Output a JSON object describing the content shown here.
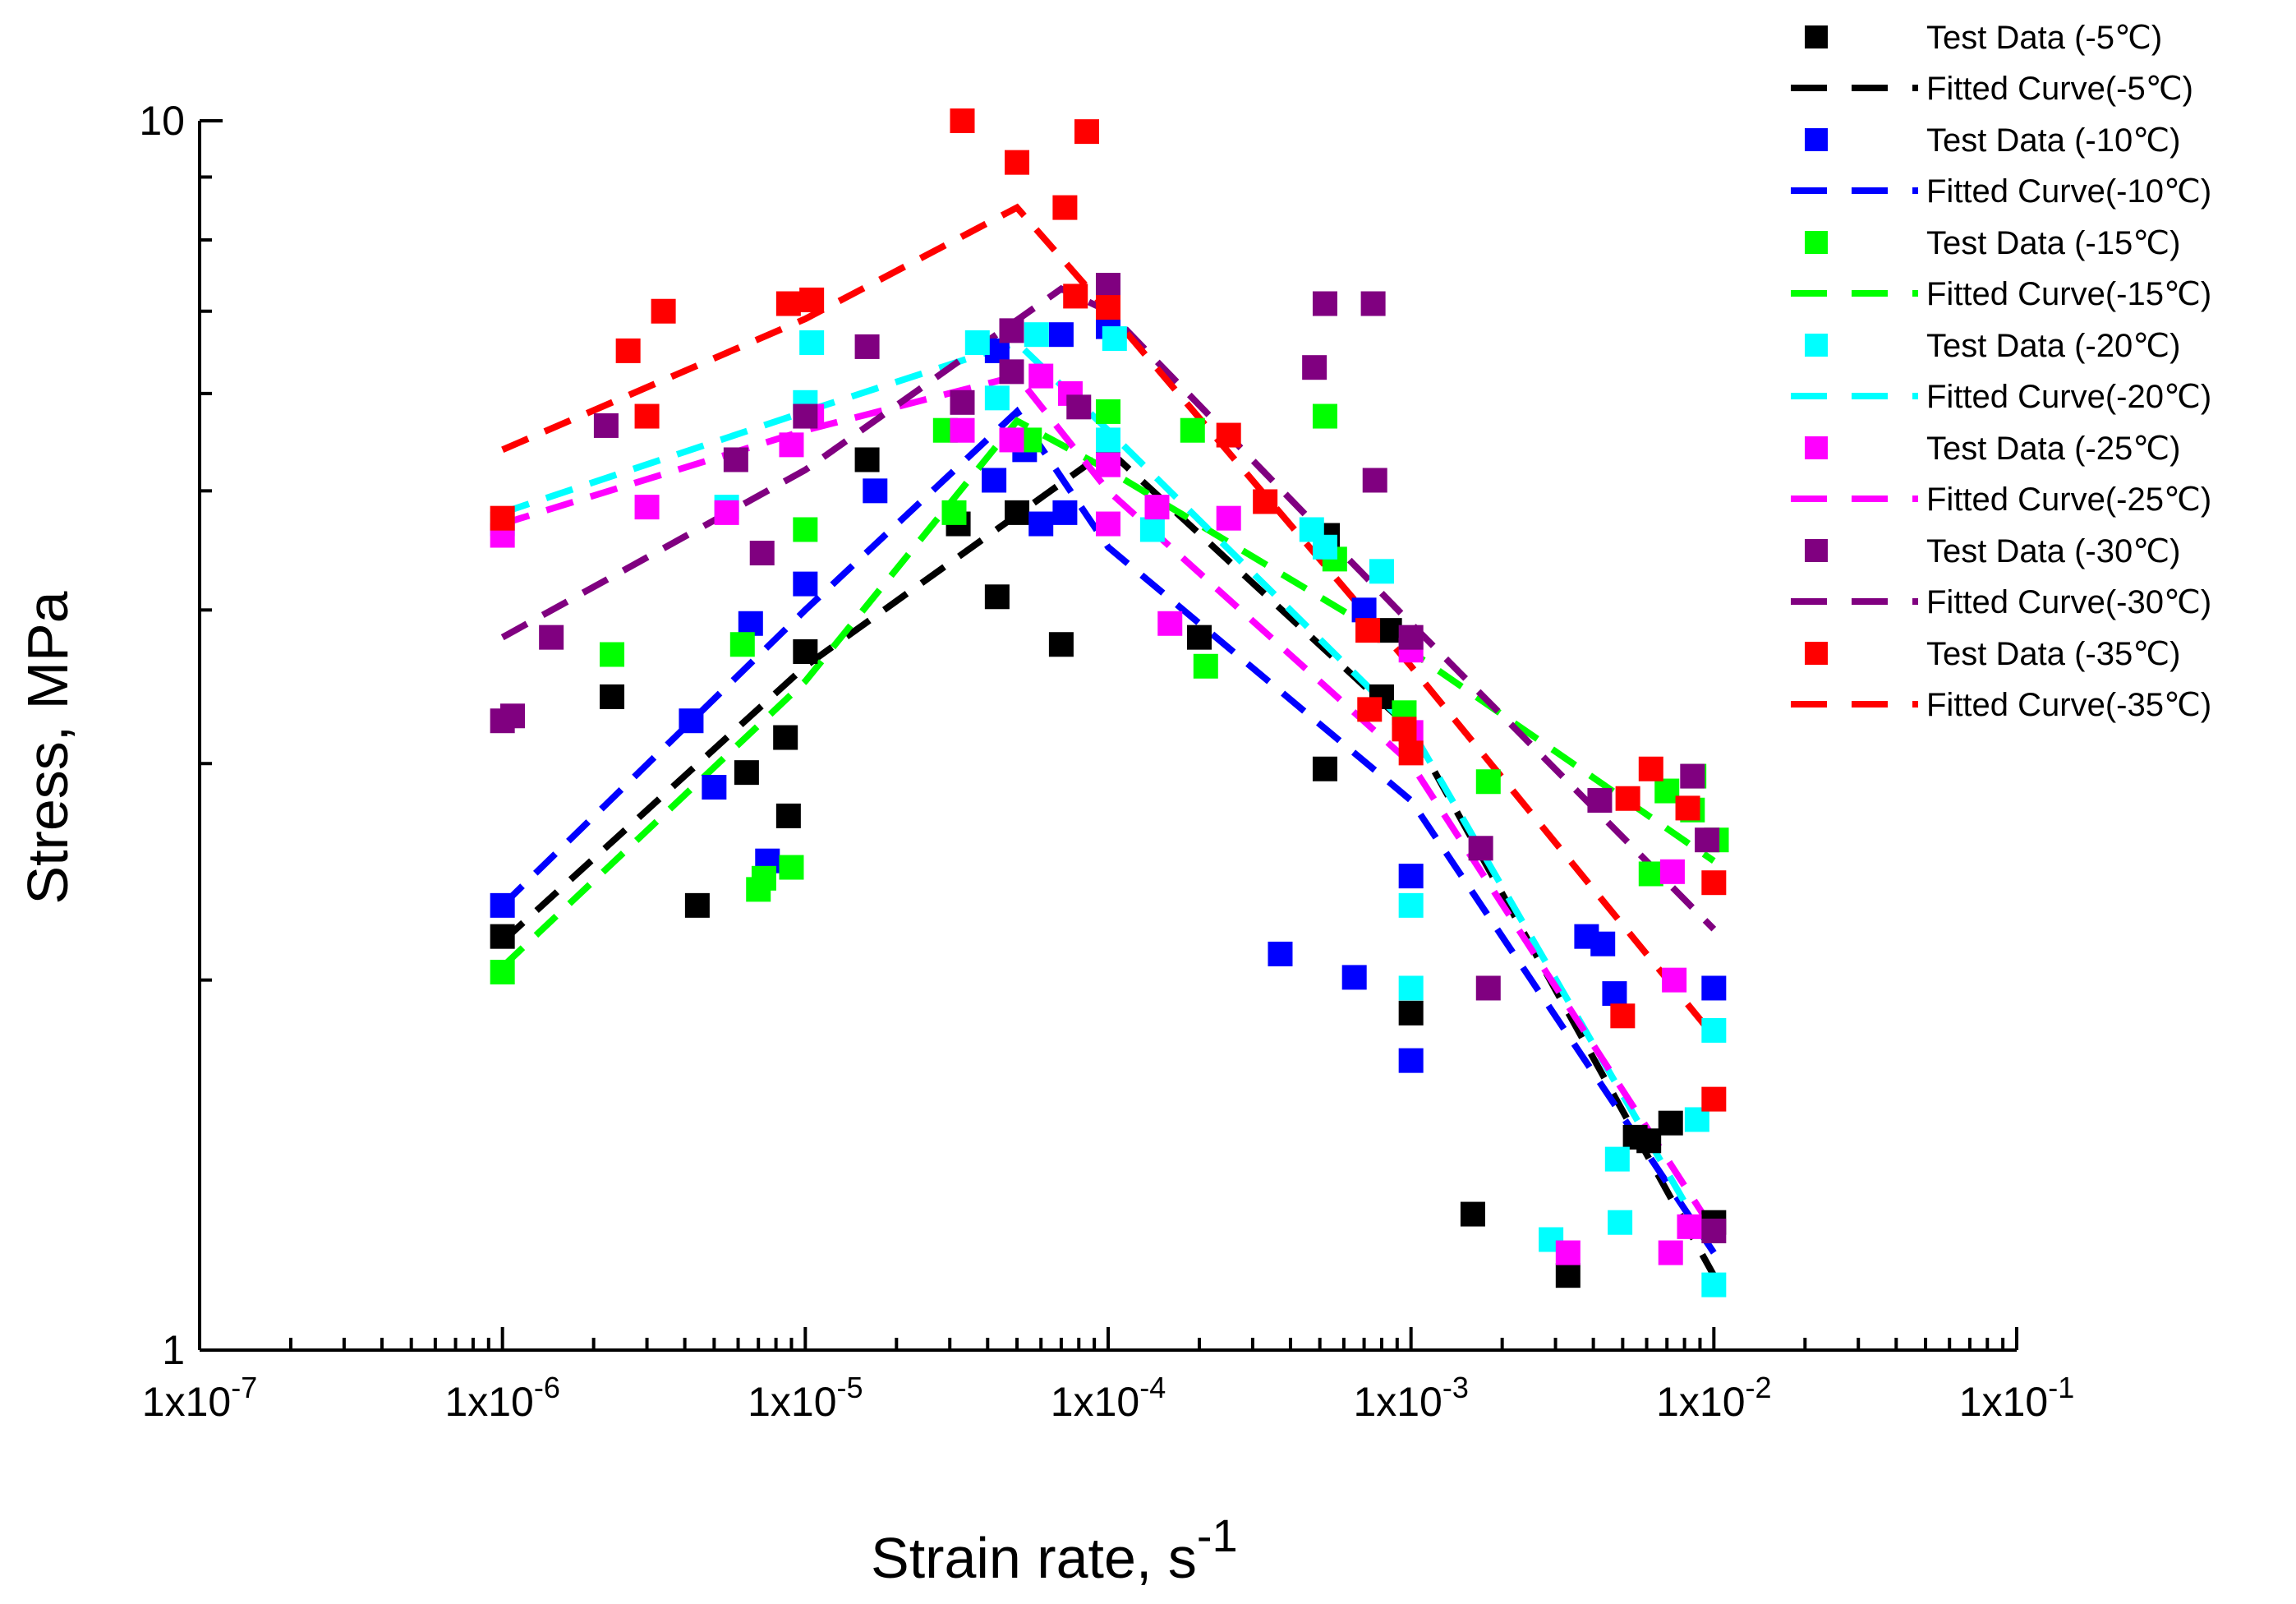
{
  "chart_data": {
    "type": "scatter",
    "title": "",
    "xlabel": "Strain rate, s",
    "xlabel_sup": "-1",
    "ylabel": "Stress, MPa",
    "xscale": "log",
    "yscale": "log",
    "xlim": [
      1e-07,
      0.1
    ],
    "ylim": [
      1,
      10
    ],
    "x_ticks": [
      {
        "value": 1e-07,
        "label": "1x10-7",
        "base": "1x10",
        "exp": "-7"
      },
      {
        "value": 1e-06,
        "label": "1x10-6",
        "base": "1x10",
        "exp": "-6"
      },
      {
        "value": 1e-05,
        "label": "1x10-5",
        "base": "1x10",
        "exp": "-5"
      },
      {
        "value": 0.0001,
        "label": "1x10-4",
        "base": "1x10",
        "exp": "-4"
      },
      {
        "value": 0.001,
        "label": "1x10-3",
        "base": "1x10",
        "exp": "-3"
      },
      {
        "value": 0.01,
        "label": "1x10-2",
        "base": "1x10",
        "exp": "-2"
      },
      {
        "value": 0.1,
        "label": "1x10-1",
        "base": "1x10",
        "exp": "-1"
      }
    ],
    "y_ticks": [
      {
        "value": 1,
        "label": "1"
      },
      {
        "value": 10,
        "label": "10"
      }
    ],
    "legend_position": "top-right, outside plot",
    "series": [
      {
        "temperature": "-5℃",
        "color": "#000000",
        "data_label": "Test Data (-5℃)",
        "fit_label": "Fitted Curve(-5℃)",
        "points": [
          [
            1e-06,
            2.17
          ],
          [
            2.3e-06,
            3.4
          ],
          [
            4.4e-06,
            2.3
          ],
          [
            6.4e-06,
            2.95
          ],
          [
            8.6e-06,
            3.15
          ],
          [
            8.8e-06,
            2.72
          ],
          [
            1e-05,
            3.7
          ],
          [
            1.6e-05,
            5.3
          ],
          [
            3.2e-05,
            4.7
          ],
          [
            4.3e-05,
            4.1
          ],
          [
            5e-05,
            4.8
          ],
          [
            7e-05,
            3.75
          ],
          [
            0.0001,
            5.3
          ],
          [
            0.0002,
            3.8
          ],
          [
            0.00052,
            2.97
          ],
          [
            0.00053,
            4.6
          ],
          [
            0.0008,
            3.4
          ],
          [
            0.00085,
            3.85
          ],
          [
            0.001,
            1.88
          ],
          [
            0.0016,
            1.29
          ],
          [
            0.0033,
            1.15
          ],
          [
            0.0055,
            1.49
          ],
          [
            0.0061,
            1.48
          ],
          [
            0.0072,
            1.53
          ],
          [
            0.01,
            1.27
          ]
        ],
        "fit": [
          [
            1e-06,
            2.15
          ],
          [
            1e-05,
            3.6
          ],
          [
            0.0001,
            5.4
          ],
          [
            0.001,
            3.2
          ],
          [
            0.01,
            1.15
          ]
        ]
      },
      {
        "temperature": "-10℃",
        "color": "#0000ff",
        "data_label": "Test Data (-10℃)",
        "fit_label": "Fitted Curve(-10℃)",
        "points": [
          [
            1e-06,
            2.3
          ],
          [
            4.2e-06,
            3.25
          ],
          [
            5e-06,
            2.87
          ],
          [
            6.6e-06,
            3.9
          ],
          [
            7.5e-06,
            2.5
          ],
          [
            1e-05,
            4.2
          ],
          [
            1.7e-05,
            5
          ],
          [
            4.2e-05,
            5.1
          ],
          [
            4.3e-05,
            6.5
          ],
          [
            5.3e-05,
            5.4
          ],
          [
            6e-05,
            4.7
          ],
          [
            7e-05,
            6.7
          ],
          [
            7.2e-05,
            4.8
          ],
          [
            0.0001,
            6.8
          ],
          [
            0.00037,
            2.1
          ],
          [
            0.00065,
            2.01
          ],
          [
            0.0007,
            4
          ],
          [
            0.001,
            2.43
          ],
          [
            0.001,
            1.72
          ],
          [
            0.0038,
            2.17
          ],
          [
            0.0043,
            2.14
          ],
          [
            0.0047,
            1.95
          ],
          [
            0.01,
            1.97
          ]
        ],
        "fit": [
          [
            1e-06,
            2.3
          ],
          [
            1e-05,
            4.0
          ],
          [
            5e-05,
            5.8
          ],
          [
            0.0001,
            4.5
          ],
          [
            0.001,
            2.8
          ],
          [
            0.01,
            1.2
          ]
        ]
      },
      {
        "temperature": "-15℃",
        "color": "#00ff00",
        "data_label": "Test Data (-15℃)",
        "fit_label": "Fitted Curve(-15℃)",
        "points": [
          [
            1e-06,
            2.03
          ],
          [
            2.3e-06,
            3.68
          ],
          [
            6.2e-06,
            3.75
          ],
          [
            7e-06,
            2.37
          ],
          [
            7.3e-06,
            2.42
          ],
          [
            9e-06,
            2.47
          ],
          [
            1e-05,
            4.65
          ],
          [
            2.9e-05,
            5.6
          ],
          [
            3.1e-05,
            4.8
          ],
          [
            5.5e-05,
            5.5
          ],
          [
            0.0001,
            5.8
          ],
          [
            0.00019,
            5.6
          ],
          [
            0.00021,
            3.6
          ],
          [
            0.00052,
            5.75
          ],
          [
            0.00056,
            4.4
          ],
          [
            0.00095,
            3.3
          ],
          [
            0.0018,
            2.9
          ],
          [
            0.0062,
            2.44
          ],
          [
            0.007,
            2.85
          ],
          [
            0.0085,
            2.75
          ],
          [
            0.0086,
            2.93
          ],
          [
            0.0102,
            2.6
          ]
        ],
        "fit": [
          [
            1e-06,
            2.05
          ],
          [
            1e-05,
            3.5
          ],
          [
            5e-05,
            5.7
          ],
          [
            0.0001,
            5.2
          ],
          [
            0.001,
            3.7
          ],
          [
            0.01,
            2.5
          ]
        ]
      },
      {
        "temperature": "-20℃",
        "color": "#00ffff",
        "data_label": "Test Data (-20℃)",
        "fit_label": "Fitted Curve(-20℃)",
        "points": [
          [
            1e-06,
            4.7
          ],
          [
            5.5e-06,
            4.85
          ],
          [
            1e-05,
            5.9
          ],
          [
            1.05e-05,
            6.6
          ],
          [
            3.7e-05,
            6.6
          ],
          [
            4.3e-05,
            5.95
          ],
          [
            5.8e-05,
            6.7
          ],
          [
            0.0001,
            5.5
          ],
          [
            0.000105,
            6.65
          ],
          [
            0.00014,
            4.65
          ],
          [
            0.00047,
            4.65
          ],
          [
            0.00052,
            4.5
          ],
          [
            0.0008,
            4.3
          ],
          [
            0.001,
            2.3
          ],
          [
            0.001,
            1.97
          ],
          [
            0.0029,
            1.23
          ],
          [
            0.0048,
            1.43
          ],
          [
            0.0049,
            1.27
          ],
          [
            0.0088,
            1.54
          ],
          [
            0.01,
            1.82
          ],
          [
            0.01,
            1.13
          ]
        ],
        "fit": [
          [
            1e-06,
            4.8
          ],
          [
            1e-05,
            5.8
          ],
          [
            5e-05,
            6.6
          ],
          [
            0.0001,
            5.6
          ],
          [
            0.001,
            3.2
          ],
          [
            0.01,
            1.2
          ]
        ]
      },
      {
        "temperature": "-25℃",
        "color": "#ff00ff",
        "data_label": "Test Data (-25℃)",
        "fit_label": "Fitted Curve(-25℃)",
        "points": [
          [
            1e-06,
            4.6
          ],
          [
            3e-06,
            4.85
          ],
          [
            5.5e-06,
            4.8
          ],
          [
            9e-06,
            5.45
          ],
          [
            1.05e-05,
            5.75
          ],
          [
            3.3e-05,
            5.6
          ],
          [
            4.8e-05,
            5.5
          ],
          [
            6e-05,
            6.2
          ],
          [
            7.5e-05,
            6.0
          ],
          [
            0.0001,
            5.25
          ],
          [
            0.0001,
            4.7
          ],
          [
            0.000145,
            4.85
          ],
          [
            0.00016,
            3.9
          ],
          [
            0.00025,
            4.75
          ],
          [
            0.001,
            3.71
          ],
          [
            0.001,
            3.18
          ],
          [
            0.0033,
            1.2
          ],
          [
            0.0072,
            1.2
          ],
          [
            0.0073,
            2.45
          ],
          [
            0.0083,
            1.26
          ],
          [
            0.0074,
            2.0
          ]
        ],
        "fit": [
          [
            1e-06,
            4.7
          ],
          [
            1e-05,
            5.6
          ],
          [
            5e-05,
            6.2
          ],
          [
            0.0001,
            5.0
          ],
          [
            0.001,
            3.0
          ],
          [
            0.01,
            1.25
          ]
        ]
      },
      {
        "temperature": "-30℃",
        "color": "#800080",
        "data_label": "Test Data (-30℃)",
        "fit_label": "Fitted Curve(-30℃)",
        "points": [
          [
            1e-06,
            3.25
          ],
          [
            1.08e-06,
            3.28
          ],
          [
            1.45e-06,
            3.8
          ],
          [
            2.2e-06,
            5.65
          ],
          [
            5.9e-06,
            5.3
          ],
          [
            7.2e-06,
            4.45
          ],
          [
            1e-05,
            5.75
          ],
          [
            1.6e-05,
            6.55
          ],
          [
            3.3e-05,
            5.9
          ],
          [
            4.8e-05,
            6.25
          ],
          [
            4.8e-05,
            6.75
          ],
          [
            8e-05,
            5.85
          ],
          [
            0.0001,
            7.35
          ],
          [
            0.00048,
            6.3
          ],
          [
            0.00052,
            7.1
          ],
          [
            0.00075,
            7.1
          ],
          [
            0.00076,
            5.1
          ],
          [
            0.001,
            3.8
          ],
          [
            0.0017,
            2.56
          ],
          [
            0.0018,
            1.97
          ],
          [
            0.0042,
            2.8
          ],
          [
            0.0085,
            2.93
          ],
          [
            0.0095,
            2.6
          ],
          [
            0.01,
            1.25
          ]
        ],
        "fit": [
          [
            1e-06,
            3.8
          ],
          [
            1e-05,
            5.2
          ],
          [
            7e-05,
            7.3
          ],
          [
            0.0001,
            7.0
          ],
          [
            0.001,
            3.9
          ],
          [
            0.01,
            2.2
          ]
        ]
      },
      {
        "temperature": "-35℃",
        "color": "#ff0000",
        "data_label": "Test Data (-35℃)",
        "fit_label": "Fitted Curve(-35℃)",
        "points": [
          [
            1e-06,
            4.75
          ],
          [
            2.6e-06,
            6.5
          ],
          [
            3e-06,
            5.75
          ],
          [
            3.4e-06,
            7.0
          ],
          [
            8.8e-06,
            7.1
          ],
          [
            1.05e-05,
            7.15
          ],
          [
            3.3e-05,
            10.0
          ],
          [
            5e-05,
            9.25
          ],
          [
            7.2e-05,
            8.5
          ],
          [
            8.5e-05,
            9.8
          ],
          [
            7.8e-05,
            7.2
          ],
          [
            0.0001,
            7.05
          ],
          [
            0.00025,
            5.55
          ],
          [
            0.00033,
            4.9
          ],
          [
            0.00072,
            3.85
          ],
          [
            0.00073,
            3.32
          ],
          [
            0.00095,
            3.2
          ],
          [
            0.001,
            3.06
          ],
          [
            0.005,
            1.87
          ],
          [
            0.0052,
            2.81
          ],
          [
            0.0062,
            2.97
          ],
          [
            0.0082,
            2.76
          ],
          [
            0.01,
            1.6
          ],
          [
            0.01,
            2.4
          ]
        ],
        "fit": [
          [
            1e-06,
            5.4
          ],
          [
            1e-05,
            6.9
          ],
          [
            5e-05,
            8.5
          ],
          [
            0.0001,
            7.0
          ],
          [
            0.001,
            3.6
          ],
          [
            0.01,
            1.8
          ]
        ]
      }
    ]
  }
}
